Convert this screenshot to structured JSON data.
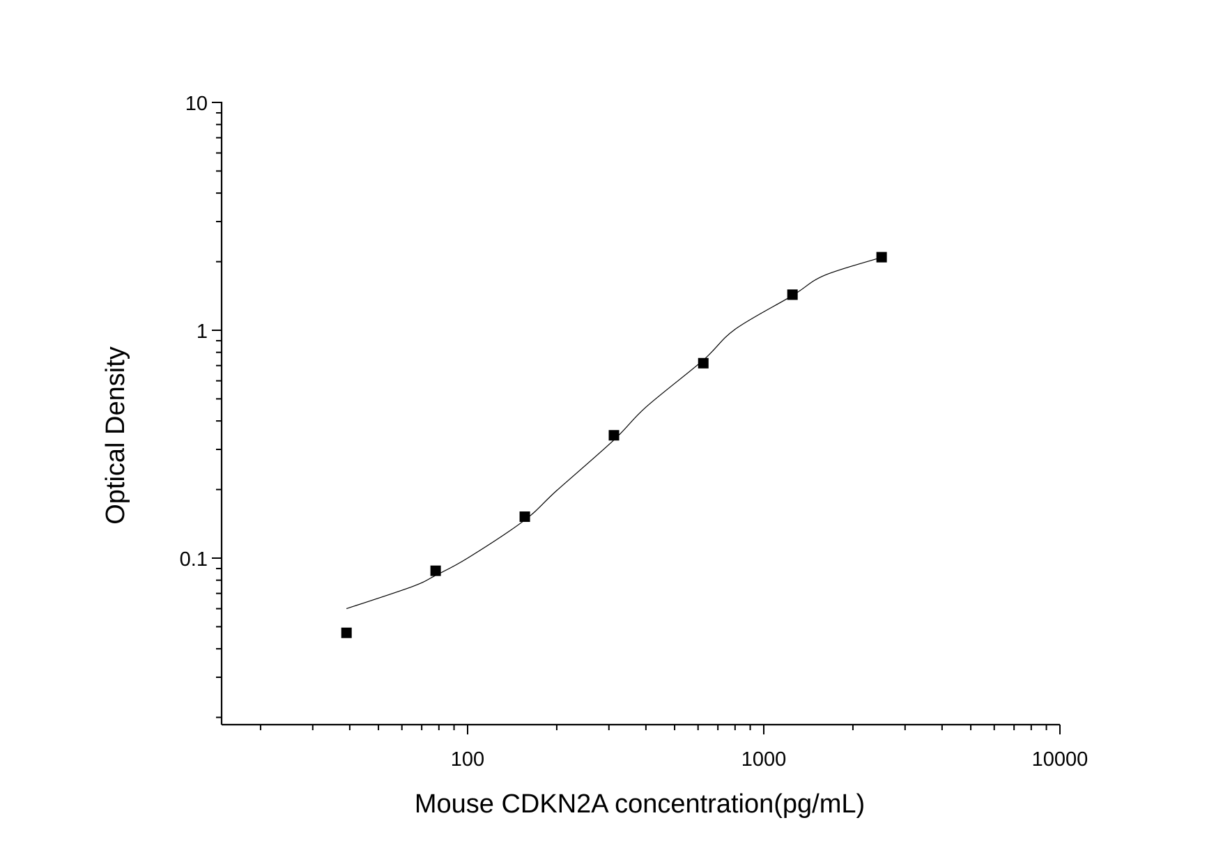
{
  "chart_data": {
    "type": "scatter",
    "title": "",
    "xlabel": "Mouse CDKN2A concentration(pg/mL)",
    "ylabel": "Optical Density",
    "xscale": "log",
    "yscale": "log",
    "xlim": [
      15,
      10000
    ],
    "ylim": [
      0.02,
      10
    ],
    "x_tick_labels": [
      "100",
      "1000",
      "10000"
    ],
    "y_tick_labels": [
      "0.1",
      "1",
      "10"
    ],
    "grid": false,
    "legend": "none",
    "series": [
      {
        "type": "scatter",
        "marker": "square",
        "x": [
          39,
          78,
          156,
          312,
          625,
          1250,
          2500
        ],
        "y": [
          0.047,
          0.088,
          0.152,
          0.346,
          0.717,
          1.433,
          2.093
        ]
      }
    ],
    "fit_curve": {
      "type": "line",
      "x": [
        39,
        65,
        78,
        100,
        156,
        200,
        312,
        400,
        625,
        800,
        1250,
        1600,
        2500
      ],
      "y": [
        0.06,
        0.075,
        0.084,
        0.1,
        0.147,
        0.198,
        0.33,
        0.46,
        0.74,
        1.01,
        1.42,
        1.74,
        2.09
      ]
    },
    "colors": {
      "axis": "#000000",
      "marker": "#000000",
      "curve": "#000000"
    }
  }
}
